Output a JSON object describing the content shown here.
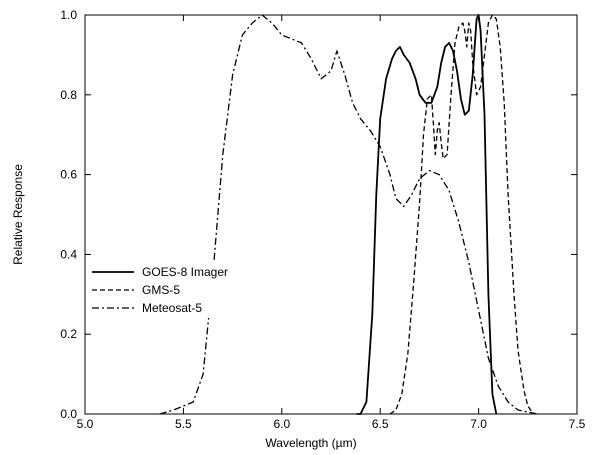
{
  "chart_data": {
    "type": "line",
    "xlabel": "Wavelength (µm)",
    "ylabel": "Relative Response",
    "xlim": [
      5.0,
      7.5
    ],
    "ylim": [
      0.0,
      1.0
    ],
    "xticks": [
      "5.0",
      "5.5",
      "6.0",
      "6.5",
      "7.0",
      "7.5"
    ],
    "yticks": [
      "0.0",
      "0.2",
      "0.4",
      "0.6",
      "0.8",
      "1.0"
    ],
    "grid": false,
    "legend_position": "center-left",
    "series": [
      {
        "name": "GOES-8 Imager",
        "style": "solid",
        "points": [
          [
            6.38,
            0.0
          ],
          [
            6.4,
            0.0
          ],
          [
            6.43,
            0.03
          ],
          [
            6.46,
            0.25
          ],
          [
            6.48,
            0.55
          ],
          [
            6.5,
            0.74
          ],
          [
            6.53,
            0.84
          ],
          [
            6.56,
            0.89
          ],
          [
            6.58,
            0.91
          ],
          [
            6.6,
            0.92
          ],
          [
            6.62,
            0.9
          ],
          [
            6.65,
            0.88
          ],
          [
            6.68,
            0.84
          ],
          [
            6.7,
            0.8
          ],
          [
            6.73,
            0.78
          ],
          [
            6.76,
            0.78
          ],
          [
            6.79,
            0.82
          ],
          [
            6.81,
            0.88
          ],
          [
            6.83,
            0.92
          ],
          [
            6.85,
            0.93
          ],
          [
            6.87,
            0.91
          ],
          [
            6.89,
            0.86
          ],
          [
            6.91,
            0.79
          ],
          [
            6.93,
            0.75
          ],
          [
            6.95,
            0.76
          ],
          [
            6.97,
            0.85
          ],
          [
            6.99,
            0.99
          ],
          [
            7.0,
            1.0
          ],
          [
            7.01,
            0.96
          ],
          [
            7.03,
            0.75
          ],
          [
            7.05,
            0.3
          ],
          [
            7.07,
            0.05
          ],
          [
            7.09,
            0.0
          ]
        ]
      },
      {
        "name": "GMS-5",
        "style": "dashed",
        "points": [
          [
            6.55,
            0.0
          ],
          [
            6.58,
            0.01
          ],
          [
            6.61,
            0.05
          ],
          [
            6.64,
            0.15
          ],
          [
            6.67,
            0.33
          ],
          [
            6.7,
            0.53
          ],
          [
            6.72,
            0.7
          ],
          [
            6.74,
            0.79
          ],
          [
            6.76,
            0.8
          ],
          [
            6.77,
            0.73
          ],
          [
            6.78,
            0.65
          ],
          [
            6.79,
            0.71
          ],
          [
            6.8,
            0.73
          ],
          [
            6.81,
            0.68
          ],
          [
            6.82,
            0.64
          ],
          [
            6.84,
            0.65
          ],
          [
            6.86,
            0.8
          ],
          [
            6.88,
            0.93
          ],
          [
            6.9,
            0.97
          ],
          [
            6.92,
            0.98
          ],
          [
            6.93,
            0.96
          ],
          [
            6.94,
            0.92
          ],
          [
            6.95,
            0.98
          ],
          [
            6.96,
            0.96
          ],
          [
            6.97,
            0.88
          ],
          [
            6.99,
            0.8
          ],
          [
            7.01,
            0.82
          ],
          [
            7.03,
            0.9
          ],
          [
            7.05,
            0.98
          ],
          [
            7.07,
            1.0
          ],
          [
            7.09,
            0.99
          ],
          [
            7.11,
            0.92
          ],
          [
            7.13,
            0.78
          ],
          [
            7.15,
            0.55
          ],
          [
            7.18,
            0.3
          ],
          [
            7.2,
            0.16
          ],
          [
            7.23,
            0.06
          ],
          [
            7.25,
            0.02
          ],
          [
            7.28,
            0.0
          ]
        ]
      },
      {
        "name": "Meteosat-5",
        "style": "dashdot",
        "points": [
          [
            5.38,
            0.0
          ],
          [
            5.45,
            0.01
          ],
          [
            5.55,
            0.03
          ],
          [
            5.6,
            0.1
          ],
          [
            5.65,
            0.35
          ],
          [
            5.7,
            0.65
          ],
          [
            5.75,
            0.85
          ],
          [
            5.8,
            0.95
          ],
          [
            5.85,
            0.98
          ],
          [
            5.9,
            1.0
          ],
          [
            5.95,
            0.98
          ],
          [
            6.0,
            0.95
          ],
          [
            6.05,
            0.94
          ],
          [
            6.1,
            0.93
          ],
          [
            6.15,
            0.89
          ],
          [
            6.2,
            0.84
          ],
          [
            6.25,
            0.86
          ],
          [
            6.28,
            0.91
          ],
          [
            6.32,
            0.85
          ],
          [
            6.36,
            0.78
          ],
          [
            6.4,
            0.74
          ],
          [
            6.45,
            0.71
          ],
          [
            6.5,
            0.67
          ],
          [
            6.55,
            0.6
          ],
          [
            6.58,
            0.54
          ],
          [
            6.62,
            0.52
          ],
          [
            6.66,
            0.55
          ],
          [
            6.7,
            0.59
          ],
          [
            6.75,
            0.61
          ],
          [
            6.8,
            0.6
          ],
          [
            6.85,
            0.56
          ],
          [
            6.9,
            0.48
          ],
          [
            6.95,
            0.38
          ],
          [
            7.0,
            0.26
          ],
          [
            7.05,
            0.14
          ],
          [
            7.1,
            0.07
          ],
          [
            7.15,
            0.03
          ],
          [
            7.2,
            0.01
          ],
          [
            7.3,
            0.0
          ]
        ]
      }
    ]
  }
}
